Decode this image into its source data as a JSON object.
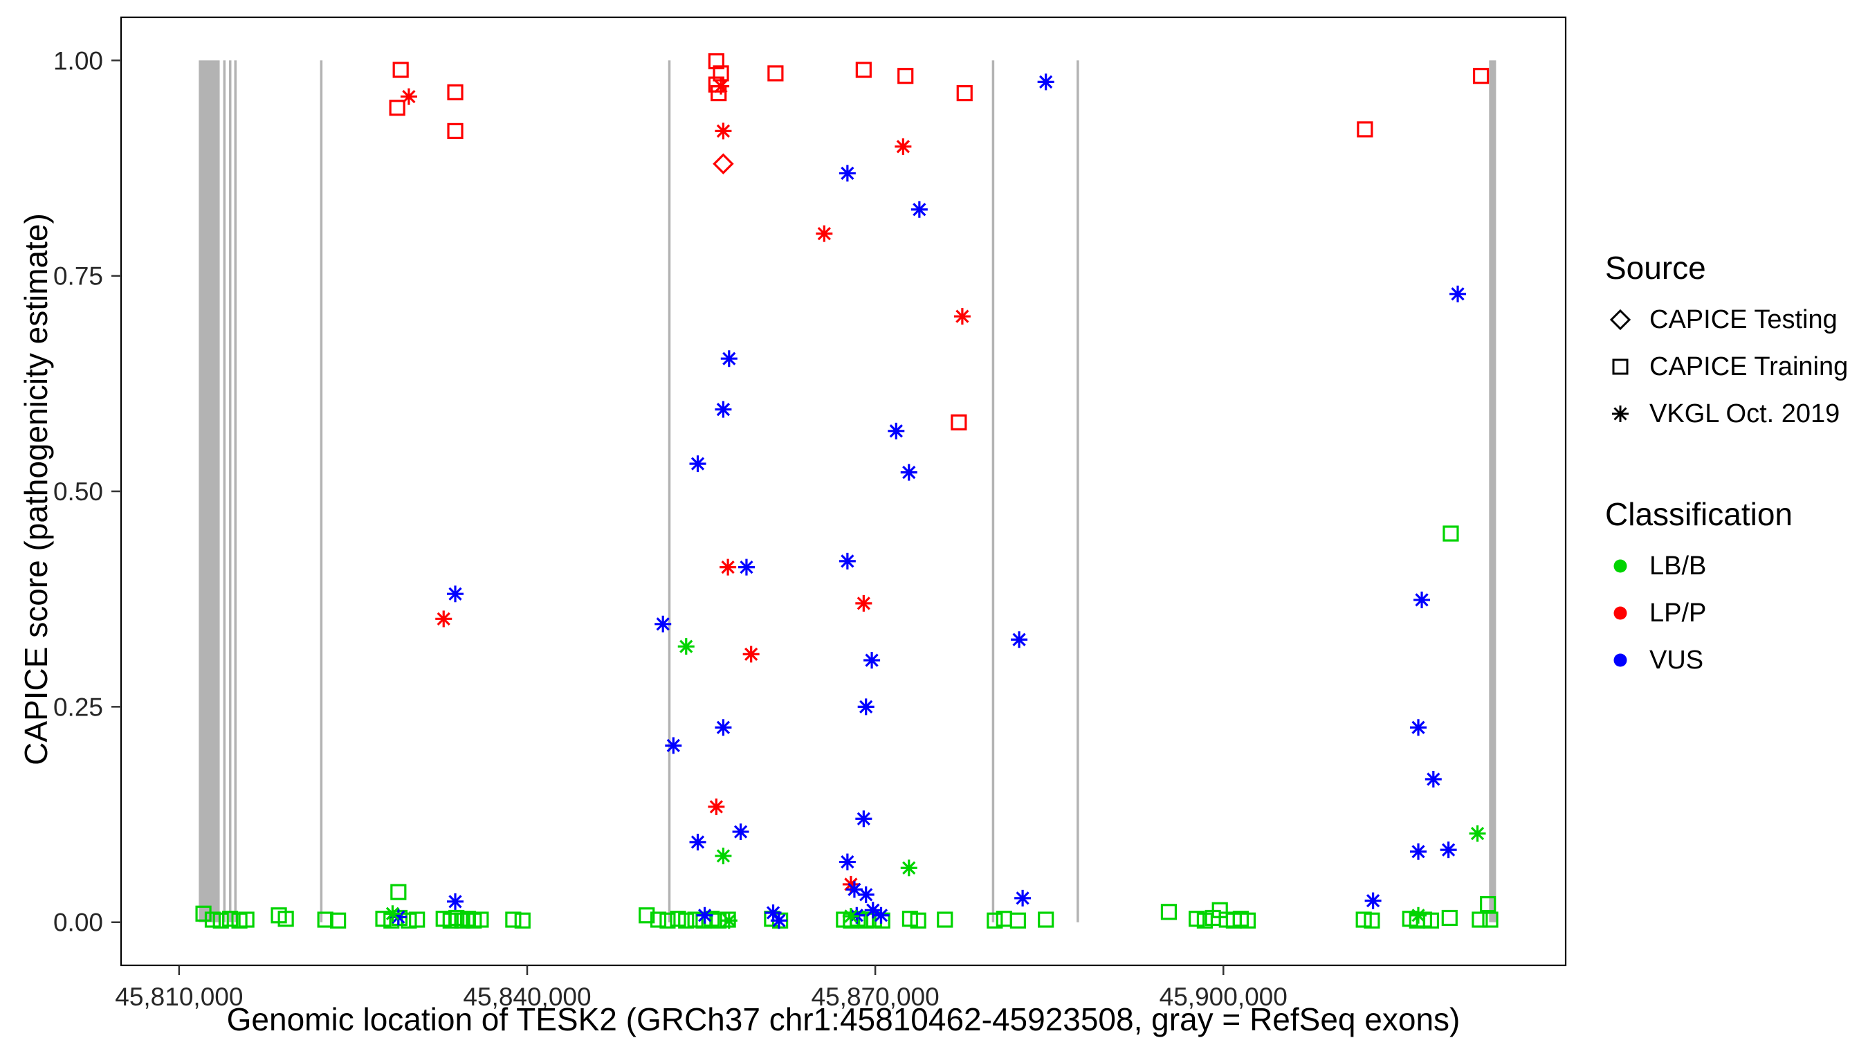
{
  "figure": {
    "xlabel": "Genomic location of TESK2 (GRCh37 chr1:45810462-45923508, gray = RefSeq exons)",
    "ylabel": "CAPICE score (pathogenicity estimate)",
    "x_ticks": [
      {
        "value": 45810000,
        "label": "45,810,000"
      },
      {
        "value": 45840000,
        "label": "45,840,000"
      },
      {
        "value": 45870000,
        "label": "45,870,000"
      },
      {
        "value": 45900000,
        "label": "45,900,000"
      }
    ],
    "y_ticks": [
      {
        "value": 0.0,
        "label": "0.00"
      },
      {
        "value": 0.25,
        "label": "0.25"
      },
      {
        "value": 0.5,
        "label": "0.50"
      },
      {
        "value": 0.75,
        "label": "0.75"
      },
      {
        "value": 1.0,
        "label": "1.00"
      }
    ]
  },
  "legend": {
    "source": {
      "title": "Source",
      "items": [
        {
          "label": "CAPICE Testing",
          "marker": "diamond"
        },
        {
          "label": "CAPICE Training",
          "marker": "square"
        },
        {
          "label": "VKGL Oct. 2019",
          "marker": "asterisk"
        }
      ]
    },
    "classification": {
      "title": "Classification",
      "items": [
        {
          "label": "LB/B",
          "color": "#00D400"
        },
        {
          "label": "LP/P",
          "color": "#FF0000"
        },
        {
          "label": "VUS",
          "color": "#0000FF"
        }
      ]
    }
  },
  "chart_data": {
    "type": "scatter",
    "title": "",
    "xlabel": "Genomic location of TESK2 (GRCh37 chr1:45810462-45923508, gray = RefSeq exons)",
    "ylabel": "CAPICE score (pathogenicity estimate)",
    "xlim": [
      45805000,
      45929500
    ],
    "ylim": [
      -0.05,
      1.05
    ],
    "grid": false,
    "legend_position": "right",
    "exon_color": "#B3B3B3",
    "exons": [
      [
        45811700,
        45813500
      ],
      [
        45813800,
        45813950
      ],
      [
        45814300,
        45814450
      ],
      [
        45814750,
        45814900
      ],
      [
        45822150,
        45822300
      ],
      [
        45852150,
        45852300
      ],
      [
        45880050,
        45880200
      ],
      [
        45887350,
        45887500
      ],
      [
        45922900,
        45923500
      ]
    ],
    "series": [
      {
        "id": "capice-training-lbb",
        "source": "CAPICE Training",
        "classification": "LB/B",
        "marker": "square",
        "color": "#00D400",
        "points": [
          [
            45812100,
            0.01
          ],
          [
            45812900,
            0.003
          ],
          [
            45813600,
            0.002
          ],
          [
            45814400,
            0.004
          ],
          [
            45815200,
            0.002
          ],
          [
            45815800,
            0.003
          ],
          [
            45818600,
            0.008
          ],
          [
            45819200,
            0.004
          ],
          [
            45822600,
            0.003
          ],
          [
            45823700,
            0.002
          ],
          [
            45827600,
            0.004
          ],
          [
            45828300,
            0.002
          ],
          [
            45828900,
            0.035
          ],
          [
            45829000,
            0.005
          ],
          [
            45829800,
            0.002
          ],
          [
            45830500,
            0.003
          ],
          [
            45832800,
            0.004
          ],
          [
            45833400,
            0.002
          ],
          [
            45833900,
            0.005
          ],
          [
            45834400,
            0.002
          ],
          [
            45834900,
            0.004
          ],
          [
            45835400,
            0.002
          ],
          [
            45836000,
            0.003
          ],
          [
            45838800,
            0.003
          ],
          [
            45839600,
            0.002
          ],
          [
            45850300,
            0.008
          ],
          [
            45851300,
            0.003
          ],
          [
            45852100,
            0.002
          ],
          [
            45853000,
            0.004
          ],
          [
            45853700,
            0.002
          ],
          [
            45854500,
            0.003
          ],
          [
            45855200,
            0.002
          ],
          [
            45855900,
            0.004
          ],
          [
            45856500,
            0.002
          ],
          [
            45857300,
            0.003
          ],
          [
            45861100,
            0.004
          ],
          [
            45861800,
            0.002
          ],
          [
            45867300,
            0.003
          ],
          [
            45867900,
            0.002
          ],
          [
            45868500,
            0.004
          ],
          [
            45869200,
            0.002
          ],
          [
            45869900,
            0.003
          ],
          [
            45870600,
            0.002
          ],
          [
            45873000,
            0.004
          ],
          [
            45873700,
            0.002
          ],
          [
            45876000,
            0.003
          ],
          [
            45880300,
            0.002
          ],
          [
            45881100,
            0.004
          ],
          [
            45882300,
            0.002
          ],
          [
            45884700,
            0.003
          ],
          [
            45895300,
            0.012
          ],
          [
            45897700,
            0.004
          ],
          [
            45898400,
            0.002
          ],
          [
            45899100,
            0.005
          ],
          [
            45899700,
            0.014
          ],
          [
            45900300,
            0.003
          ],
          [
            45900900,
            0.002
          ],
          [
            45901500,
            0.004
          ],
          [
            45902100,
            0.002
          ],
          [
            45912100,
            0.003
          ],
          [
            45912800,
            0.002
          ],
          [
            45916100,
            0.004
          ],
          [
            45916700,
            0.002
          ],
          [
            45917300,
            0.003
          ],
          [
            45917900,
            0.002
          ],
          [
            45919500,
            0.005
          ],
          [
            45919600,
            0.451
          ],
          [
            45922100,
            0.003
          ],
          [
            45922800,
            0.021
          ],
          [
            45923000,
            0.003
          ]
        ]
      },
      {
        "id": "capice-training-lpp",
        "source": "CAPICE Training",
        "classification": "LP/P",
        "marker": "square",
        "color": "#FF0000",
        "points": [
          [
            45829100,
            0.989
          ],
          [
            45828800,
            0.945
          ],
          [
            45833800,
            0.963
          ],
          [
            45833800,
            0.918
          ],
          [
            45856300,
            0.999
          ],
          [
            45856700,
            0.985
          ],
          [
            45856300,
            0.972
          ],
          [
            45856500,
            0.962
          ],
          [
            45861400,
            0.985
          ],
          [
            45869000,
            0.989
          ],
          [
            45872600,
            0.982
          ],
          [
            45877700,
            0.962
          ],
          [
            45877200,
            0.58
          ],
          [
            45912200,
            0.92
          ],
          [
            45922200,
            0.982
          ]
        ]
      },
      {
        "id": "capice-testing-lpp",
        "source": "CAPICE Testing",
        "classification": "LP/P",
        "marker": "diamond",
        "color": "#FF0000",
        "points": [
          [
            45856900,
            0.88
          ]
        ]
      },
      {
        "id": "vkgl-lpp",
        "source": "VKGL Oct. 2019",
        "classification": "LP/P",
        "marker": "asterisk",
        "color": "#FF0000",
        "points": [
          [
            45829800,
            0.958
          ],
          [
            45832800,
            0.352
          ],
          [
            45856700,
            0.97
          ],
          [
            45856900,
            0.918
          ],
          [
            45865600,
            0.799
          ],
          [
            45872400,
            0.9
          ],
          [
            45877500,
            0.703
          ],
          [
            45857300,
            0.412
          ],
          [
            45869000,
            0.37
          ],
          [
            45859300,
            0.311
          ],
          [
            45856300,
            0.134
          ],
          [
            45867900,
            0.044
          ]
        ]
      },
      {
        "id": "vkgl-vus",
        "source": "VKGL Oct. 2019",
        "classification": "VUS",
        "marker": "asterisk",
        "color": "#0000FF",
        "points": [
          [
            45884700,
            0.975
          ],
          [
            45867600,
            0.869
          ],
          [
            45873800,
            0.827
          ],
          [
            45920200,
            0.729
          ],
          [
            45857400,
            0.654
          ],
          [
            45856900,
            0.595
          ],
          [
            45871800,
            0.57
          ],
          [
            45854700,
            0.532
          ],
          [
            45872900,
            0.522
          ],
          [
            45867600,
            0.419
          ],
          [
            45858900,
            0.412
          ],
          [
            45833800,
            0.381
          ],
          [
            45917100,
            0.374
          ],
          [
            45851700,
            0.346
          ],
          [
            45882400,
            0.328
          ],
          [
            45869700,
            0.304
          ],
          [
            45869200,
            0.25
          ],
          [
            45856900,
            0.226
          ],
          [
            45916800,
            0.226
          ],
          [
            45852600,
            0.205
          ],
          [
            45918100,
            0.166
          ],
          [
            45869000,
            0.12
          ],
          [
            45858400,
            0.105
          ],
          [
            45854700,
            0.093
          ],
          [
            45916800,
            0.082
          ],
          [
            45919400,
            0.084
          ],
          [
            45867600,
            0.07
          ],
          [
            45868200,
            0.038
          ],
          [
            45869200,
            0.032
          ],
          [
            45882700,
            0.028
          ],
          [
            45912900,
            0.025
          ],
          [
            45833800,
            0.024
          ],
          [
            45855300,
            0.008
          ],
          [
            45861200,
            0.011
          ],
          [
            45861700,
            0.002
          ],
          [
            45868400,
            0.008
          ],
          [
            45869800,
            0.014
          ],
          [
            45870500,
            0.008
          ],
          [
            45828900,
            0.006
          ]
        ]
      },
      {
        "id": "vkgl-lbb",
        "source": "VKGL Oct. 2019",
        "classification": "LB/B",
        "marker": "asterisk",
        "color": "#00D400",
        "points": [
          [
            45853700,
            0.32
          ],
          [
            45856900,
            0.077
          ],
          [
            45872900,
            0.063
          ],
          [
            45921900,
            0.103
          ],
          [
            45828400,
            0.01
          ],
          [
            45857400,
            0.002
          ],
          [
            45916800,
            0.008
          ],
          [
            45867900,
            0.007
          ]
        ]
      }
    ]
  }
}
